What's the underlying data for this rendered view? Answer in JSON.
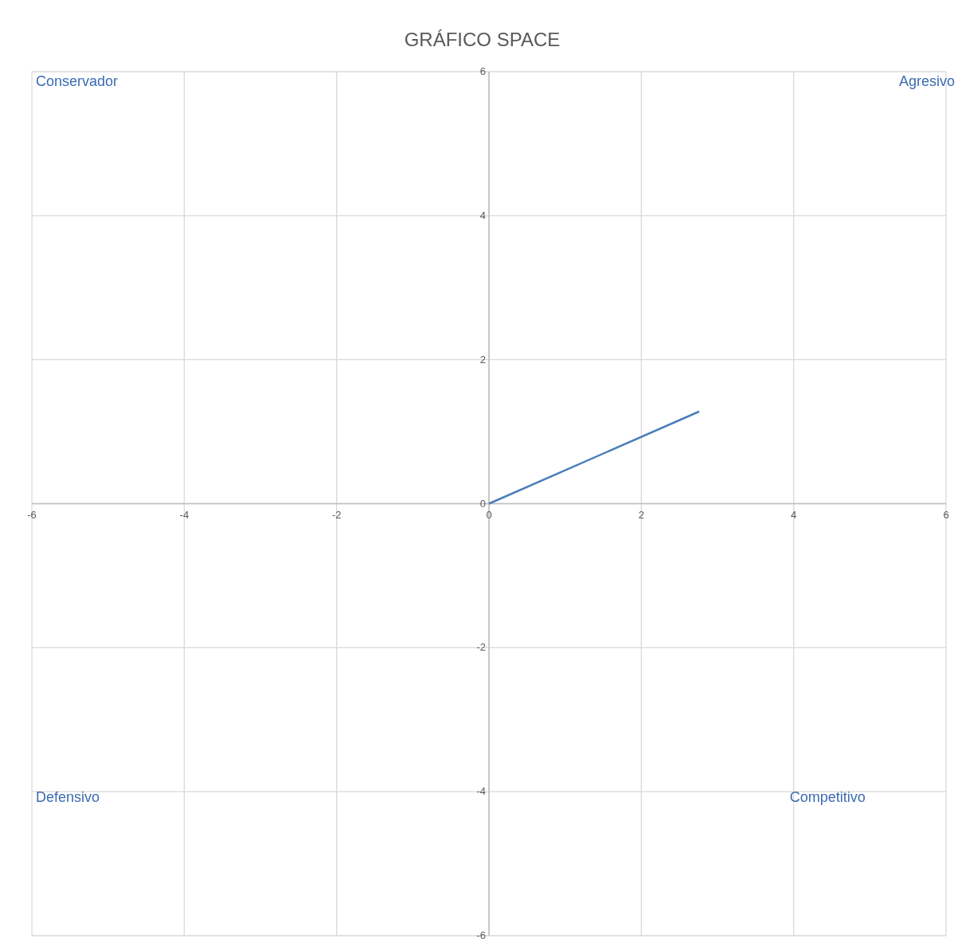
{
  "chart_data": {
    "type": "line",
    "title": "GRÁFICO SPACE",
    "x": [
      0,
      2.76
    ],
    "series": [
      {
        "color": "#4a7ebb",
        "values": [
          0,
          1.28
        ]
      }
    ],
    "xlim": [
      -6,
      6
    ],
    "xticks": [
      -6,
      -4,
      -2,
      0,
      2,
      4,
      6
    ],
    "ylim": [
      -6,
      6
    ],
    "yticks": [
      -6,
      -4,
      -2,
      0,
      2,
      4,
      6
    ],
    "grid": true,
    "legend": false,
    "marker": "none",
    "line_style": "solid",
    "annotations": [
      "Conservador",
      "Agresivo",
      "Defensivo",
      "Competitivo"
    ]
  }
}
